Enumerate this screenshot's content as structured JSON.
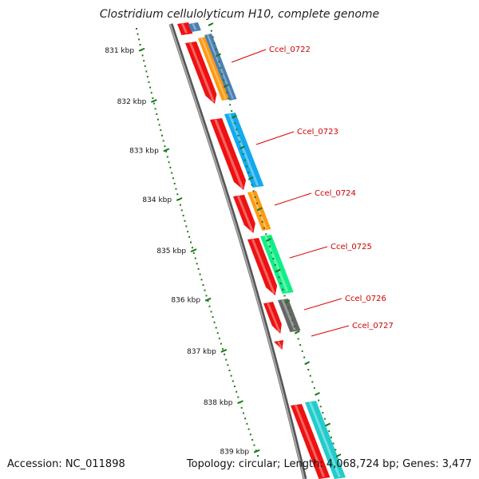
{
  "title": "Clostridium cellulolyticum H10, complete genome",
  "footer": {
    "accession": "Accession: NC_011898",
    "summary": "Topology: circular; Length: 4,068,724 bp; Genes: 3,477"
  },
  "colors": {
    "backbone": "#888888",
    "tick": "#1a7a1a",
    "label_red": "#dd0000",
    "gene_red": "#ee1111",
    "orange": "#ff9911",
    "steelblue": "#4a7fb5",
    "deepskyblue": "#11aaee",
    "springgreen": "#11ee88",
    "gray": "#666666",
    "turquoise": "#22cccc"
  },
  "kbp_labels": [
    "831 kbp",
    "832 kbp",
    "833 kbp",
    "834 kbp",
    "835 kbp",
    "836 kbp",
    "837 kbp",
    "838 kbp",
    "839 kbp"
  ],
  "genes": [
    {
      "label": "Ccel_0722"
    },
    {
      "label": "Ccel_0723"
    },
    {
      "label": "Ccel_0724"
    },
    {
      "label": "Ccel_0725"
    },
    {
      "label": "Ccel_0726"
    },
    {
      "label": "Ccel_0727"
    }
  ]
}
